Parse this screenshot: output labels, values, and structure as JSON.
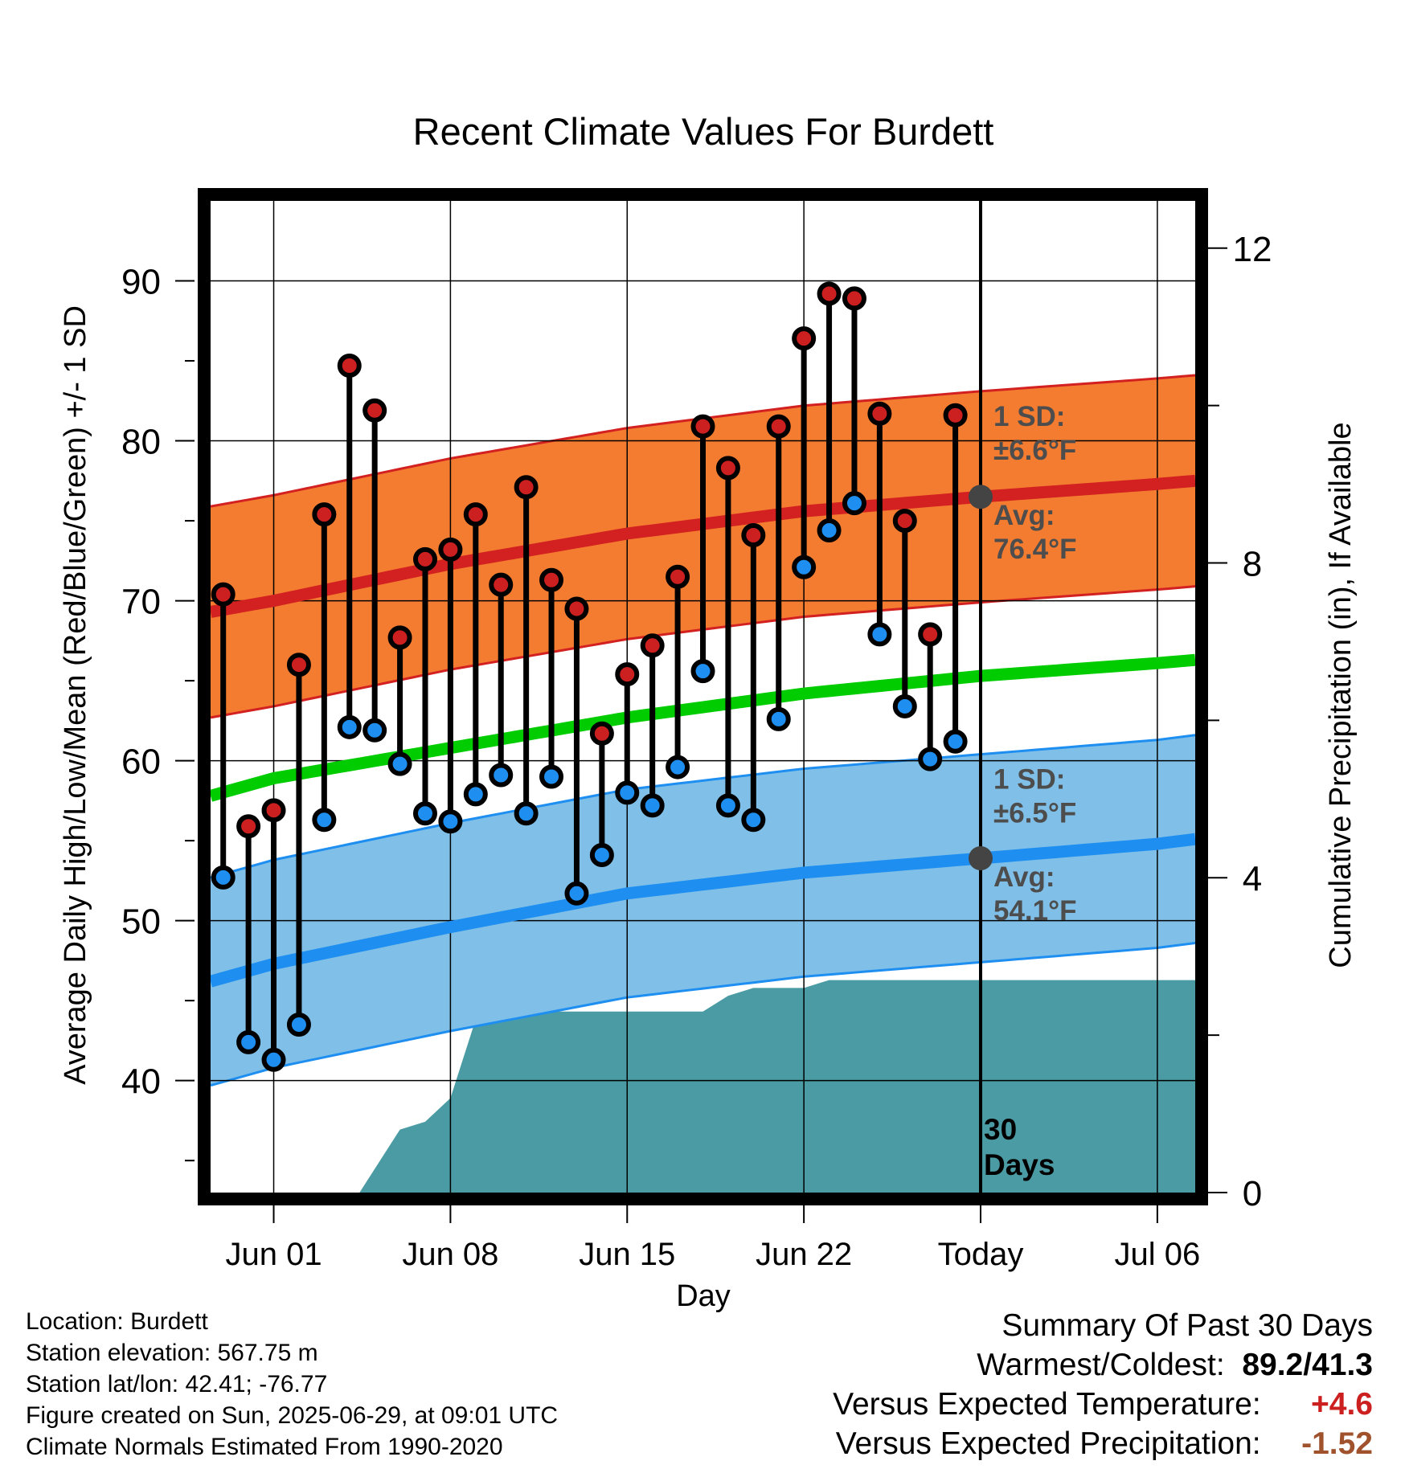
{
  "chart_data": {
    "type": "line",
    "title": "Recent Climate Values For Burdett",
    "xlabel": "Day",
    "ylabel": "Average Daily High/Low/Mean (Red/Blue/Green) +/- 1 SD",
    "y2label": "Cumulative Precipitation (in), If Available",
    "ylim": [
      33,
      95
    ],
    "y2lim": [
      0,
      12.6
    ],
    "yticks": [
      40,
      50,
      60,
      70,
      80,
      90
    ],
    "y2ticks": [
      0,
      4,
      8,
      12
    ],
    "grid": true,
    "xticks": [
      {
        "label": "Jun 01",
        "day": 0
      },
      {
        "label": "Jun 08",
        "day": 7
      },
      {
        "label": "Jun 15",
        "day": 14
      },
      {
        "label": "Jun 22",
        "day": 21
      },
      {
        "label": "Today",
        "day": 28
      },
      {
        "label": "Jul 06",
        "day": 35
      }
    ],
    "today_day": 28,
    "period_label": "30 Days",
    "observed": {
      "days": [
        -2,
        -1,
        0,
        1,
        2,
        3,
        4,
        5,
        6,
        7,
        8,
        9,
        10,
        11,
        12,
        13,
        14,
        15,
        16,
        17,
        18,
        19,
        20,
        21,
        22,
        23,
        24,
        25,
        26,
        27
      ],
      "highs": [
        70.4,
        55.9,
        56.9,
        66.0,
        75.4,
        84.7,
        81.9,
        67.7,
        72.6,
        73.2,
        75.4,
        71.0,
        77.1,
        71.3,
        69.5,
        61.7,
        65.4,
        67.2,
        71.5,
        80.9,
        78.3,
        74.1,
        80.9,
        86.4,
        89.2,
        88.9,
        81.7,
        75.0,
        67.9,
        81.6
      ],
      "lows": [
        52.7,
        42.4,
        41.3,
        43.5,
        56.3,
        62.1,
        61.9,
        59.8,
        56.7,
        56.2,
        57.9,
        59.1,
        56.7,
        59.0,
        51.7,
        54.1,
        58.0,
        57.2,
        59.6,
        65.6,
        57.2,
        56.3,
        62.6,
        72.1,
        74.4,
        76.1,
        67.9,
        63.4,
        60.1,
        61.2
      ]
    },
    "normals": {
      "days": [
        -2.5,
        0,
        7,
        14,
        21,
        28,
        35,
        36.5
      ],
      "high_avg": [
        69.3,
        70.0,
        72.3,
        74.2,
        75.6,
        76.5,
        77.3,
        77.5
      ],
      "low_avg": [
        46.2,
        47.3,
        49.6,
        51.7,
        53.0,
        53.9,
        54.8,
        55.1
      ],
      "mean_avg": [
        57.8,
        58.9,
        60.8,
        62.7,
        64.2,
        65.3,
        66.1,
        66.3
      ],
      "high_sd": 6.6,
      "low_sd": 6.5
    },
    "precip": {
      "days": [
        -2.5,
        3.4,
        5,
        6,
        7,
        8,
        9,
        10,
        11,
        14,
        16,
        17,
        18,
        19,
        20,
        21,
        22,
        27,
        36.5
      ],
      "values": [
        0,
        0,
        0.8,
        0.9,
        1.2,
        2.2,
        2.3,
        2.3,
        2.3,
        2.3,
        2.3,
        2.3,
        2.5,
        2.6,
        2.6,
        2.6,
        2.7,
        2.7,
        2.7
      ]
    },
    "annotations": {
      "high_sd_label": "1 SD:",
      "high_sd_value": "±6.6°F",
      "high_avg_label": "Avg:",
      "high_avg_value": "76.4°F",
      "low_sd_label": "1 SD:",
      "low_sd_value": "±6.5°F",
      "low_avg_label": "Avg:",
      "low_avg_value": "54.1°F"
    },
    "colors": {
      "high_band": "#f37c30",
      "high_line": "#d32020",
      "low_band": "#80c0e8",
      "low_line": "#1e8ff0",
      "mean_line": "#00cc00",
      "precip_fill": "#4a9ba3",
      "high_marker": "#cc2020",
      "low_marker": "#1e8ff0",
      "annotation_text": "#4d4d4d"
    }
  },
  "footer": {
    "location": "Location: Burdett",
    "elevation": "Station elevation: 567.75 m",
    "latlon": "Station lat/lon: 42.41; -76.77",
    "created": "Figure created on Sun, 2025-06-29, at 09:01 UTC",
    "normals": "Climate Normals Estimated From 1990-2020"
  },
  "summary": {
    "title": "Summary Of Past 30 Days",
    "warm_cold_label": "Warmest/Coldest:",
    "warm_cold_value": "89.2/41.3",
    "temp_label": "Versus Expected Temperature:",
    "temp_value": "+4.6",
    "temp_color": "#cc2020",
    "precip_label": "Versus Expected Precipitation:",
    "precip_value": "-1.52",
    "precip_color": "#a0522d"
  }
}
